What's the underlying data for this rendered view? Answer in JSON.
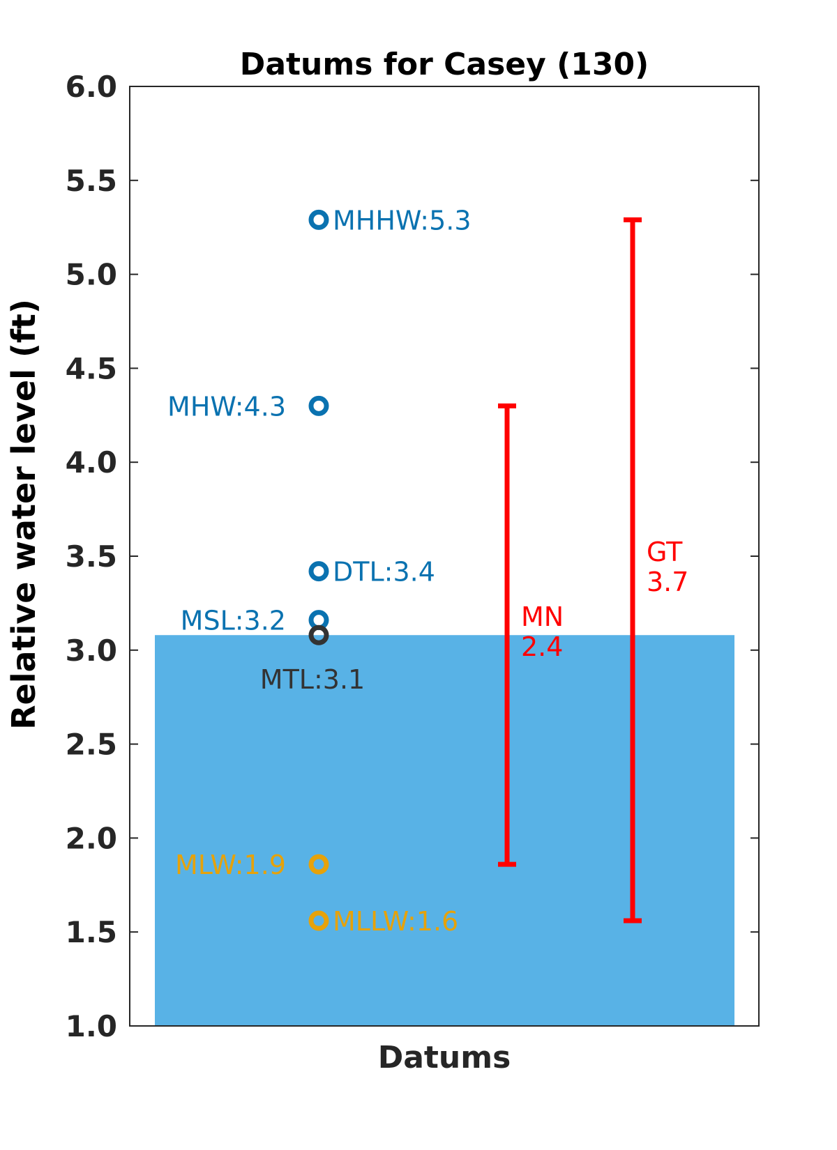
{
  "chart_data": {
    "type": "scatter",
    "title": "Datums for Casey (130)",
    "xlabel": "Datums",
    "ylabel": "Relative water level (ft)",
    "ylim": [
      1.0,
      6.0
    ],
    "yticks": [
      "1.0",
      "1.5",
      "2.0",
      "2.5",
      "3.0",
      "3.5",
      "4.0",
      "4.5",
      "5.0",
      "5.5",
      "6.0"
    ],
    "water_level": 3.08,
    "colors": {
      "water": "#58b2e6",
      "high_datum": "#0a72b0",
      "mean_datum": "#333333",
      "low_datum": "#e6a20a",
      "range": "#ff0000"
    },
    "datums": [
      {
        "name": "MHHW",
        "label": "MHHW:5.3",
        "value": 5.29,
        "group": "high",
        "label_side": "right"
      },
      {
        "name": "MHW",
        "label": "MHW:4.3",
        "value": 4.3,
        "group": "high",
        "label_side": "left"
      },
      {
        "name": "DTL",
        "label": "DTL:3.4",
        "value": 3.42,
        "group": "high",
        "label_side": "right"
      },
      {
        "name": "MSL",
        "label": "MSL:3.2",
        "value": 3.16,
        "group": "high",
        "label_side": "left"
      },
      {
        "name": "MTL",
        "label": "MTL:3.1",
        "value": 3.08,
        "group": "mean",
        "label_side": "below"
      },
      {
        "name": "MLW",
        "label": "MLW:1.9",
        "value": 1.86,
        "group": "low",
        "label_side": "left"
      },
      {
        "name": "MLLW",
        "label": "MLLW:1.6",
        "value": 1.56,
        "group": "low",
        "label_side": "right"
      }
    ],
    "ranges": [
      {
        "name": "MN",
        "value": "2.4",
        "low": 1.86,
        "high": 4.3
      },
      {
        "name": "GT",
        "value": "3.7",
        "low": 1.56,
        "high": 5.29
      }
    ]
  }
}
